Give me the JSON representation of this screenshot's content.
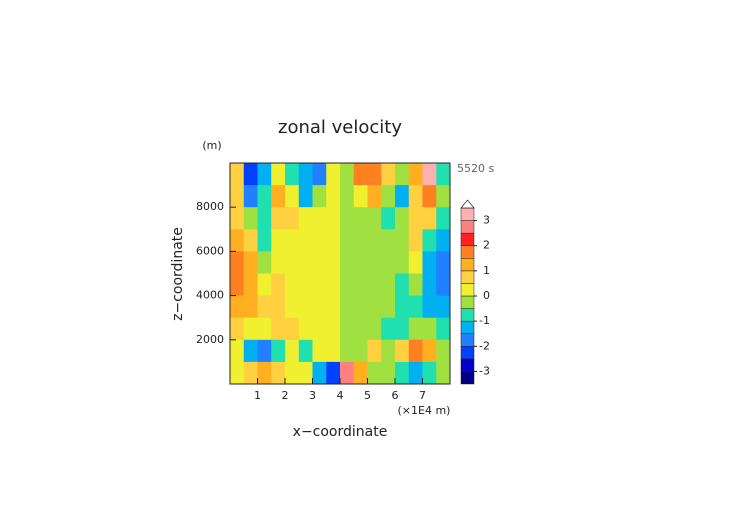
{
  "chart_data": {
    "type": "contour",
    "title": "zonal velocity",
    "y_unit": "(m)",
    "time_label": "5520 s",
    "xlabel": "x−coordinate",
    "ylabel": "z−coordinate",
    "x_unit": "(×1E4 m)",
    "xlim": [
      0,
      8
    ],
    "ylim": [
      0,
      10000
    ],
    "xticks": [
      1,
      2,
      3,
      4,
      5,
      6,
      7
    ],
    "yticks": [
      2000,
      4000,
      6000,
      8000
    ],
    "x": [
      0.25,
      0.75,
      1.25,
      1.75,
      2.25,
      2.75,
      3.25,
      3.75,
      4.25,
      4.75,
      5.25,
      5.75,
      6.25,
      6.75,
      7.25,
      7.75
    ],
    "y": [
      9500,
      8500,
      7500,
      6500,
      5500,
      4500,
      3500,
      2500,
      1500,
      500
    ],
    "z": [
      [
        0.8,
        -2.5,
        -1.2,
        0.3,
        -0.8,
        -1.5,
        -1.8,
        0.2,
        -0.2,
        1.8,
        1.5,
        0.8,
        -0.3,
        1.2,
        3.2,
        -0.8
      ],
      [
        0.5,
        -1.8,
        -0.8,
        1.2,
        0.2,
        -1.2,
        -0.3,
        0.2,
        -0.2,
        0.3,
        1.2,
        -0.2,
        -1.2,
        0.8,
        1.8,
        -0.5
      ],
      [
        0.8,
        -0.5,
        -0.8,
        0.5,
        0.6,
        0.2,
        0.2,
        0.2,
        -0.2,
        -0.2,
        -0.2,
        -0.6,
        -0.5,
        0.8,
        0.5,
        -0.8
      ],
      [
        1.3,
        0.8,
        -0.8,
        0.3,
        0.3,
        0.2,
        0.4,
        0.2,
        -0.2,
        -0.4,
        -0.2,
        -0.3,
        -0.3,
        0.8,
        -0.8,
        -1.3
      ],
      [
        1.6,
        1.3,
        -0.2,
        0.3,
        0.4,
        0.2,
        0.4,
        0.2,
        -0.2,
        -0.4,
        -0.2,
        -0.4,
        -0.3,
        0.2,
        -1.3,
        -1.6
      ],
      [
        1.6,
        1.4,
        0.4,
        0.6,
        0.3,
        0.4,
        0.3,
        0.2,
        -0.2,
        -0.3,
        -0.4,
        -0.3,
        -0.6,
        -0.4,
        -1.4,
        -1.6
      ],
      [
        1.4,
        1.2,
        0.6,
        0.8,
        0.3,
        0.4,
        0.3,
        0.2,
        -0.2,
        -0.3,
        -0.4,
        -0.3,
        -0.8,
        -0.6,
        -1.2,
        -1.4
      ],
      [
        0.6,
        0.4,
        0.4,
        0.8,
        0.6,
        0.4,
        0.3,
        0.2,
        -0.2,
        -0.3,
        -0.4,
        -0.6,
        -0.8,
        -0.4,
        -0.4,
        -0.6
      ],
      [
        0.4,
        -1.2,
        -1.6,
        -0.8,
        0.3,
        -0.6,
        0.4,
        0.4,
        -0.4,
        -0.4,
        0.6,
        -0.3,
        0.8,
        1.6,
        1.2,
        -0.4
      ],
      [
        0.4,
        0.6,
        1.2,
        0.8,
        0.3,
        0.3,
        -1.2,
        -2.5,
        2.5,
        1.2,
        -0.3,
        -0.3,
        -0.8,
        -1.2,
        -0.6,
        -0.4
      ]
    ],
    "colorbar": {
      "levels": [
        -3.5,
        -3,
        -2.5,
        -2,
        -1.5,
        -1,
        -0.5,
        0,
        0.5,
        1,
        1.5,
        2,
        2.5,
        3,
        3.5
      ],
      "colors": [
        "#000080",
        "#0000c8",
        "#0040ff",
        "#2080ff",
        "#00b0f0",
        "#20e0b0",
        "#a0e040",
        "#f0f030",
        "#ffd040",
        "#ffb020",
        "#ff8020",
        "#ff2020",
        "#ff8080",
        "#ffb0b0"
      ],
      "ticks": [
        -3,
        -2,
        -1,
        0,
        1,
        2,
        3
      ]
    }
  }
}
